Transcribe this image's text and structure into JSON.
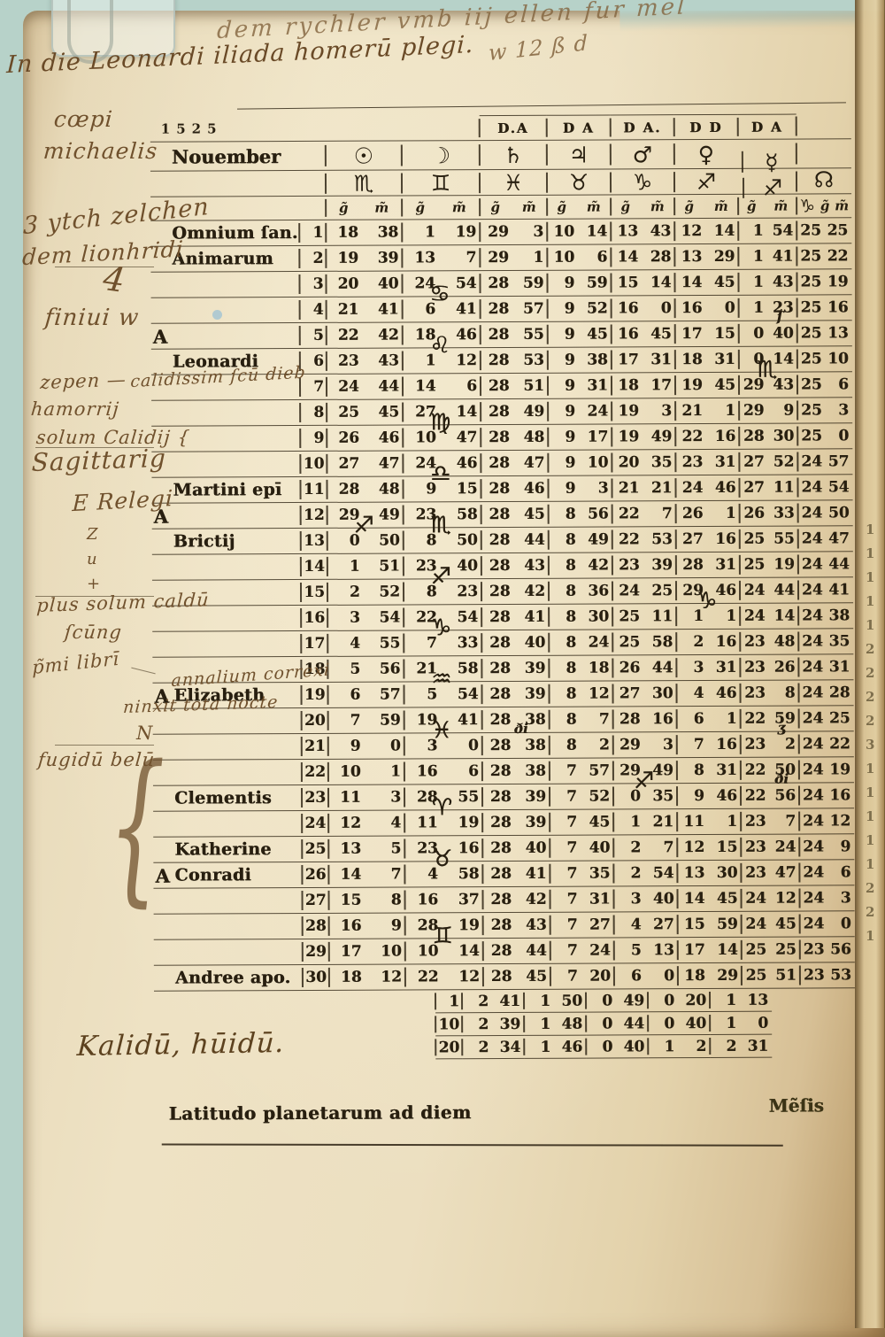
{
  "page": {
    "year": "1525",
    "month": "Nouember"
  },
  "header": {
    "sigils": [
      "D.A",
      "D A",
      "D A.",
      "D D",
      "D A"
    ],
    "planet_symbols": [
      "☉",
      "☽",
      "♄",
      "♃",
      "♂",
      "♀",
      "☿"
    ],
    "node_symbol": "☊",
    "zodiac_signs": [
      "♏",
      "♊",
      "♓",
      "♉",
      "♑",
      "♐",
      "♐"
    ],
    "node_sign": "♑",
    "deg_label": "g̃",
    "min_label": "m̃"
  },
  "table": {
    "rows": [
      {
        "d": "1",
        "nm": "Omnium ſan.",
        "s_g": "18",
        "s_m": "38",
        "mo_g": "1",
        "mo_m": "19",
        "sa_g": "29",
        "sa_m": "3",
        "ju_g": "10",
        "ju_m": "14",
        "ma_g": "13",
        "ma_m": "43",
        "ve_g": "12",
        "ve_m": "14",
        "me_g": "1",
        "me_m": "54",
        "ca_g": "25",
        "ca_m": "25"
      },
      {
        "d": "2",
        "nm": "Animarum",
        "s_g": "19",
        "s_m": "39",
        "mo_g": "13",
        "mo_m": "7",
        "sa_g": "29",
        "sa_m": "1",
        "ju_g": "10",
        "ju_m": "6",
        "ma_g": "14",
        "ma_m": "28",
        "ve_g": "13",
        "ve_m": "29",
        "me_g": "1",
        "me_m": "41",
        "ca_g": "25",
        "ca_m": "22"
      },
      {
        "d": "3",
        "s_g": "20",
        "s_m": "40",
        "mo_g": "24",
        "mo_m": "54",
        "gl_mo": "♋",
        "sa_g": "28",
        "sa_m": "59",
        "ju_g": "9",
        "ju_m": "59",
        "ma_g": "15",
        "ma_m": "14",
        "ve_g": "14",
        "ve_m": "45",
        "me_g": "1",
        "me_m": "43",
        "ca_g": "25",
        "ca_m": "19"
      },
      {
        "d": "4",
        "s_g": "21",
        "s_m": "41",
        "mo_g": "6",
        "mo_m": "41",
        "sa_g": "28",
        "sa_m": "57",
        "ju_g": "9",
        "ju_m": "52",
        "ma_g": "16",
        "ma_m": "0",
        "ve_g": "16",
        "ve_m": "0",
        "me_g": "1",
        "me_m": "23",
        "mk_me": "ſ",
        "ca_g": "25",
        "ca_m": "16"
      },
      {
        "d": "5",
        "dom": "A",
        "s_g": "22",
        "s_m": "42",
        "mo_g": "18",
        "mo_m": "46",
        "gl_mo": "♌",
        "sa_g": "28",
        "sa_m": "55",
        "ju_g": "9",
        "ju_m": "45",
        "ma_g": "16",
        "ma_m": "45",
        "ve_g": "17",
        "ve_m": "15",
        "me_g": "0",
        "me_m": "40",
        "ca_g": "25",
        "ca_m": "13"
      },
      {
        "d": "6",
        "nm": "Leonardi",
        "s_g": "23",
        "s_m": "43",
        "mo_g": "1",
        "mo_m": "12",
        "sa_g": "28",
        "sa_m": "53",
        "ju_g": "9",
        "ju_m": "38",
        "ma_g": "17",
        "ma_m": "31",
        "ve_g": "18",
        "ve_m": "31",
        "me_g": "0",
        "me_m": "14",
        "gl_me": "♏",
        "ca_g": "25",
        "ca_m": "10"
      },
      {
        "d": "7",
        "s_g": "24",
        "s_m": "44",
        "mo_g": "14",
        "mo_m": "6",
        "sa_g": "28",
        "sa_m": "51",
        "ju_g": "9",
        "ju_m": "31",
        "ma_g": "18",
        "ma_m": "17",
        "ve_g": "19",
        "ve_m": "45",
        "me_g": "29",
        "me_m": "43",
        "ca_g": "25",
        "ca_m": "6"
      },
      {
        "d": "8",
        "s_g": "25",
        "s_m": "45",
        "mo_g": "27",
        "mo_m": "14",
        "gl_mo": "♍",
        "sa_g": "28",
        "sa_m": "49",
        "ju_g": "9",
        "ju_m": "24",
        "ma_g": "19",
        "ma_m": "3",
        "ve_g": "21",
        "ve_m": "1",
        "me_g": "29",
        "me_m": "9",
        "ca_g": "25",
        "ca_m": "3"
      },
      {
        "d": "9",
        "s_g": "26",
        "s_m": "46",
        "mo_g": "10",
        "mo_m": "47",
        "sa_g": "28",
        "sa_m": "48",
        "ju_g": "9",
        "ju_m": "17",
        "ma_g": "19",
        "ma_m": "49",
        "ve_g": "22",
        "ve_m": "16",
        "me_g": "28",
        "me_m": "30",
        "ca_g": "25",
        "ca_m": "0"
      },
      {
        "d": "10",
        "s_g": "27",
        "s_m": "47",
        "mo_g": "24",
        "mo_m": "46",
        "gl_mo": "♎",
        "sa_g": "28",
        "sa_m": "47",
        "ju_g": "9",
        "ju_m": "10",
        "ma_g": "20",
        "ma_m": "35",
        "ve_g": "23",
        "ve_m": "31",
        "me_g": "27",
        "me_m": "52",
        "ca_g": "24",
        "ca_m": "57"
      },
      {
        "d": "11",
        "nm": "Martini epī",
        "s_g": "28",
        "s_m": "48",
        "mo_g": "9",
        "mo_m": "15",
        "sa_g": "28",
        "sa_m": "46",
        "ju_g": "9",
        "ju_m": "3",
        "ma_g": "21",
        "ma_m": "21",
        "ve_g": "24",
        "ve_m": "46",
        "me_g": "27",
        "me_m": "11",
        "ca_g": "24",
        "ca_m": "54"
      },
      {
        "d": "12",
        "dom": "A",
        "s_g": "29",
        "s_m": "49",
        "gl_s": "♐",
        "mo_g": "23",
        "mo_m": "58",
        "gl_mo": "♏",
        "sa_g": "28",
        "sa_m": "45",
        "ju_g": "8",
        "ju_m": "56",
        "ma_g": "22",
        "ma_m": "7",
        "ve_g": "26",
        "ve_m": "1",
        "me_g": "26",
        "me_m": "33",
        "ca_g": "24",
        "ca_m": "50"
      },
      {
        "d": "13",
        "nm": "Brictij",
        "s_g": "0",
        "s_m": "50",
        "mo_g": "8",
        "mo_m": "50",
        "sa_g": "28",
        "sa_m": "44",
        "ju_g": "8",
        "ju_m": "49",
        "ma_g": "22",
        "ma_m": "53",
        "ve_g": "27",
        "ve_m": "16",
        "me_g": "25",
        "me_m": "55",
        "ca_g": "24",
        "ca_m": "47"
      },
      {
        "d": "14",
        "s_g": "1",
        "s_m": "51",
        "mo_g": "23",
        "mo_m": "40",
        "gl_mo": "♐",
        "sa_g": "28",
        "sa_m": "43",
        "ju_g": "8",
        "ju_m": "42",
        "ma_g": "23",
        "ma_m": "39",
        "ve_g": "28",
        "ve_m": "31",
        "me_g": "25",
        "me_m": "19",
        "ca_g": "24",
        "ca_m": "44"
      },
      {
        "d": "15",
        "s_g": "2",
        "s_m": "52",
        "mo_g": "8",
        "mo_m": "23",
        "sa_g": "28",
        "sa_m": "42",
        "ju_g": "8",
        "ju_m": "36",
        "ma_g": "24",
        "ma_m": "25",
        "ve_g": "29",
        "ve_m": "46",
        "gl_ve": "♑",
        "me_g": "24",
        "me_m": "44",
        "ca_g": "24",
        "ca_m": "41"
      },
      {
        "d": "16",
        "s_g": "3",
        "s_m": "54",
        "mo_g": "22",
        "mo_m": "54",
        "gl_mo": "♑",
        "sa_g": "28",
        "sa_m": "41",
        "ju_g": "8",
        "ju_m": "30",
        "ma_g": "25",
        "ma_m": "11",
        "ve_g": "1",
        "ve_m": "1",
        "me_g": "24",
        "me_m": "14",
        "ca_g": "24",
        "ca_m": "38"
      },
      {
        "d": "17",
        "s_g": "4",
        "s_m": "55",
        "mo_g": "7",
        "mo_m": "33",
        "sa_g": "28",
        "sa_m": "40",
        "ju_g": "8",
        "ju_m": "24",
        "ma_g": "25",
        "ma_m": "58",
        "ve_g": "2",
        "ve_m": "16",
        "me_g": "23",
        "me_m": "48",
        "ca_g": "24",
        "ca_m": "35"
      },
      {
        "d": "18",
        "s_g": "5",
        "s_m": "56",
        "mo_g": "21",
        "mo_m": "58",
        "gl_mo": "♒",
        "sa_g": "28",
        "sa_m": "39",
        "ju_g": "8",
        "ju_m": "18",
        "ma_g": "26",
        "ma_m": "44",
        "ve_g": "3",
        "ve_m": "31",
        "me_g": "23",
        "me_m": "26",
        "ca_g": "24",
        "ca_m": "31"
      },
      {
        "d": "19",
        "dom": "A",
        "nm": "Elizabeth",
        "s_g": "6",
        "s_m": "57",
        "mo_g": "5",
        "mo_m": "54",
        "sa_g": "28",
        "sa_m": "39",
        "ju_g": "8",
        "ju_m": "12",
        "ma_g": "27",
        "ma_m": "30",
        "ve_g": "4",
        "ve_m": "46",
        "me_g": "23",
        "me_m": "8",
        "ca_g": "24",
        "ca_m": "28"
      },
      {
        "d": "20",
        "s_g": "7",
        "s_m": "59",
        "mo_g": "19",
        "mo_m": "41",
        "gl_mo": "♓",
        "sa_g": "28",
        "sa_m": "38",
        "mk_sa": "ði",
        "ju_g": "8",
        "ju_m": "7",
        "ma_g": "28",
        "ma_m": "16",
        "ve_g": "6",
        "ve_m": "1",
        "me_g": "22",
        "me_m": "59",
        "mk_me": "ʒ",
        "ca_g": "24",
        "ca_m": "25"
      },
      {
        "d": "21",
        "s_g": "9",
        "s_m": "0",
        "mo_g": "3",
        "mo_m": "0",
        "sa_g": "28",
        "sa_m": "38",
        "ju_g": "8",
        "ju_m": "2",
        "ma_g": "29",
        "ma_m": "3",
        "ve_g": "7",
        "ve_m": "16",
        "me_g": "23",
        "me_m": "2",
        "ca_g": "24",
        "ca_m": "22"
      },
      {
        "d": "22",
        "s_g": "10",
        "s_m": "1",
        "mo_g": "16",
        "mo_m": "6",
        "sa_g": "28",
        "sa_m": "38",
        "ju_g": "7",
        "ju_m": "57",
        "ma_g": "29",
        "ma_m": "49",
        "gl_ma": "♐",
        "ve_g": "8",
        "ve_m": "31",
        "me_g": "22",
        "me_m": "50",
        "mk_me": "ði",
        "ca_g": "24",
        "ca_m": "19"
      },
      {
        "d": "23",
        "nm": "Clementis",
        "s_g": "11",
        "s_m": "3",
        "mo_g": "28",
        "mo_m": "55",
        "gl_mo": "♈",
        "sa_g": "28",
        "sa_m": "39",
        "ju_g": "7",
        "ju_m": "52",
        "ma_g": "0",
        "ma_m": "35",
        "ve_g": "9",
        "ve_m": "46",
        "me_g": "22",
        "me_m": "56",
        "ca_g": "24",
        "ca_m": "16"
      },
      {
        "d": "24",
        "s_g": "12",
        "s_m": "4",
        "mo_g": "11",
        "mo_m": "19",
        "sa_g": "28",
        "sa_m": "39",
        "ju_g": "7",
        "ju_m": "45",
        "ma_g": "1",
        "ma_m": "21",
        "ve_g": "11",
        "ve_m": "1",
        "me_g": "23",
        "me_m": "7",
        "ca_g": "24",
        "ca_m": "12"
      },
      {
        "d": "25",
        "nm": "Katherine",
        "s_g": "13",
        "s_m": "5",
        "mo_g": "23",
        "mo_m": "16",
        "gl_mo": "♉",
        "sa_g": "28",
        "sa_m": "40",
        "ju_g": "7",
        "ju_m": "40",
        "ma_g": "2",
        "ma_m": "7",
        "ve_g": "12",
        "ve_m": "15",
        "me_g": "23",
        "me_m": "24",
        "ca_g": "24",
        "ca_m": "9"
      },
      {
        "d": "26",
        "dom": "A",
        "nm": "Conradi",
        "s_g": "14",
        "s_m": "7",
        "mo_g": "4",
        "mo_m": "58",
        "sa_g": "28",
        "sa_m": "41",
        "ju_g": "7",
        "ju_m": "35",
        "ma_g": "2",
        "ma_m": "54",
        "ve_g": "13",
        "ve_m": "30",
        "me_g": "23",
        "me_m": "47",
        "ca_g": "24",
        "ca_m": "6"
      },
      {
        "d": "27",
        "s_g": "15",
        "s_m": "8",
        "mo_g": "16",
        "mo_m": "37",
        "sa_g": "28",
        "sa_m": "42",
        "ju_g": "7",
        "ju_m": "31",
        "ma_g": "3",
        "ma_m": "40",
        "ve_g": "14",
        "ve_m": "45",
        "me_g": "24",
        "me_m": "12",
        "ca_g": "24",
        "ca_m": "3"
      },
      {
        "d": "28",
        "s_g": "16",
        "s_m": "9",
        "mo_g": "28",
        "mo_m": "19",
        "gl_mo": "♊",
        "sa_g": "28",
        "sa_m": "43",
        "ju_g": "7",
        "ju_m": "27",
        "ma_g": "4",
        "ma_m": "27",
        "ve_g": "15",
        "ve_m": "59",
        "me_g": "24",
        "me_m": "45",
        "ca_g": "24",
        "ca_m": "0"
      },
      {
        "d": "29",
        "s_g": "17",
        "s_m": "10",
        "mo_g": "10",
        "mo_m": "14",
        "sa_g": "28",
        "sa_m": "44",
        "ju_g": "7",
        "ju_m": "24",
        "ma_g": "5",
        "ma_m": "13",
        "ve_g": "17",
        "ve_m": "14",
        "me_g": "25",
        "me_m": "25",
        "ca_g": "23",
        "ca_m": "56"
      },
      {
        "d": "30",
        "nm": "Andree apo.",
        "s_g": "18",
        "s_m": "12",
        "mo_g": "22",
        "mo_m": "12",
        "sa_g": "28",
        "sa_m": "45",
        "ju_g": "7",
        "ju_m": "20",
        "ma_g": "6",
        "ma_m": "0",
        "ve_g": "18",
        "ve_m": "29",
        "me_g": "25",
        "me_m": "51",
        "ca_g": "23",
        "ca_m": "53"
      }
    ]
  },
  "latitude": {
    "label": "Latitudo planetarum ad diem",
    "mensis": "Mẽſis",
    "rows": [
      {
        "d": "1",
        "p1g": "2",
        "p1m": "41",
        "p2g": "1",
        "p2m": "50",
        "p3g": "0",
        "p3m": "49",
        "p4g": "0",
        "p4m": "20",
        "p5g": "1",
        "p5m": "13"
      },
      {
        "d": "10",
        "p1g": "2",
        "p1m": "39",
        "p2g": "1",
        "p2m": "48",
        "p3g": "0",
        "p3m": "44",
        "p4g": "0",
        "p4m": "40",
        "p5g": "1",
        "p5m": "0"
      },
      {
        "d": "20",
        "p1g": "2",
        "p1m": "34",
        "p2g": "1",
        "p2m": "46",
        "p3g": "0",
        "p3m": "40",
        "p4g": "1",
        "p4m": "2",
        "p5g": "2",
        "p5m": "31"
      }
    ]
  },
  "annotations": {
    "top_line1": "dem rychler vmb iij ellen fur mel",
    "top_line1b": "w 12 ß d",
    "top_line2": "In die Leonardi iliada homerū plegi.",
    "coepi": "cœpi",
    "michaelis": "michaelis",
    "note3": "3 ytch zelchen",
    "note3b": "dem lionhridi",
    "flourish": "4",
    "finiui": "finiui w",
    "zepen": "zepen —",
    "hamorij": "hamorrij",
    "calidiss": "calidissim ſcū dieb",
    "solum_calid": "solum Calidij {",
    "sagittarius": "Sagittarig",
    "erelegi": "E Relegi",
    "zcol": "Z\nu\n+",
    "plus_solum": "plus solum caldū",
    "jxung": "ſcūng",
    "primi": "p̃mi librī",
    "annalium": "annalium correxi",
    "ninxit": "ninxit tota nocte",
    "n_mark": "N",
    "frigidu": "fugidū belū",
    "brace": "{",
    "kalidu": "Kalidū, hūidū."
  },
  "edge_digits": "1\n1\n1\n1\n1\n2\n2\n2\n2\n3\n1\n1\n1\n1\n1\n2\n2\n1"
}
